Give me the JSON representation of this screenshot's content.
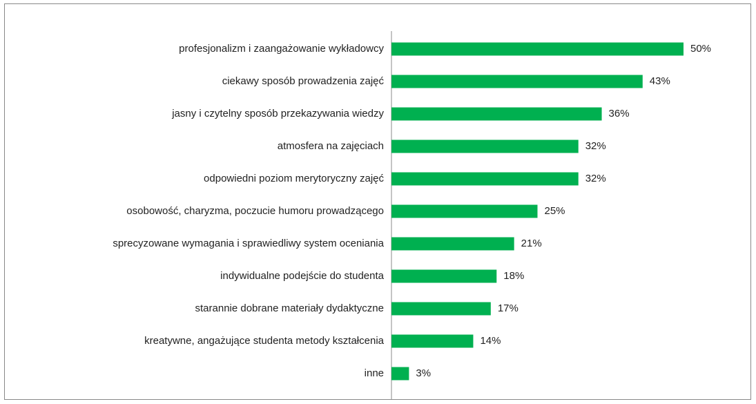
{
  "chart_data": {
    "type": "barh",
    "categories": [
      "profesjonalizm i zaangażowanie wykładowcy",
      "ciekawy sposób prowadzenia zajęć",
      "jasny i czytelny sposób przekazywania wiedzy",
      "atmosfera na zajęciach",
      "odpowiedni poziom merytoryczny zajęć",
      "osobowość, charyzma, poczucie humoru prowadzącego",
      "sprecyzowane wymagania i sprawiedliwy system oceniania",
      "indywidualne podejście do studenta",
      "starannie dobrane materiały dydaktyczne",
      "kreatywne, angażujące studenta metody kształcenia",
      "inne"
    ],
    "values": [
      50,
      43,
      36,
      32,
      32,
      25,
      21,
      18,
      17,
      14,
      3
    ],
    "value_labels": [
      "50%",
      "43%",
      "36%",
      "32%",
      "32%",
      "25%",
      "21%",
      "18%",
      "17%",
      "14%",
      "3%"
    ],
    "color": "#00b050",
    "xlim": [
      0,
      50
    ]
  }
}
